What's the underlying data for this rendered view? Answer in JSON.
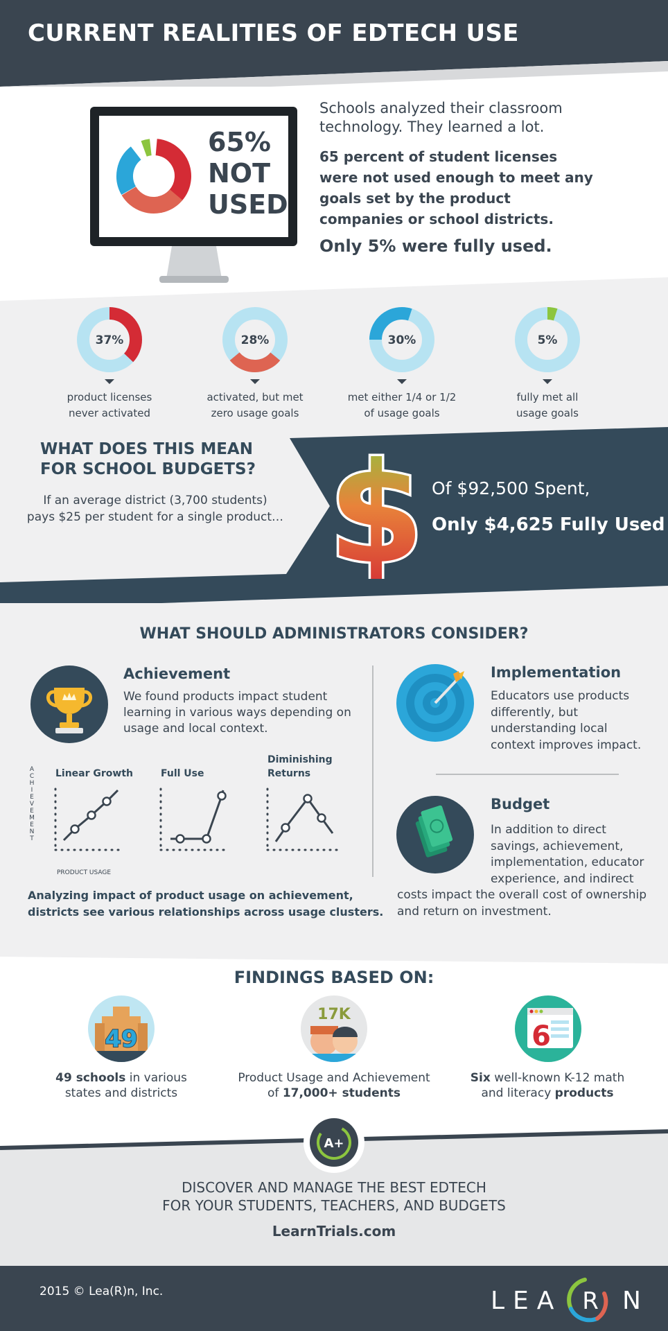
{
  "header": {
    "title": "CURRENT REALITIES OF EDTECH USE"
  },
  "monitor": {
    "line1": "65%",
    "line2": "NOT",
    "line3": "USED"
  },
  "intro": {
    "lead": "Schools analyzed their classroom technology. They learned a lot.",
    "bold": "65 percent of student licenses were not used enough to meet any goals set by the product companies or school districts.",
    "highlight": "Only 5% were fully used."
  },
  "stats": [
    {
      "value": 37,
      "label": "37%",
      "line1": "product licenses",
      "line2": "never activated",
      "color": "#d42b35"
    },
    {
      "value": 28,
      "label": "28%",
      "line1": "activated, but met",
      "line2": "zero usage goals",
      "color": "#de6452"
    },
    {
      "value": 30,
      "label": "30%",
      "line1": "met either 1/4 or 1/2",
      "line2": "of usage goals",
      "color": "#2ba6d9"
    },
    {
      "value": 5,
      "label": "5%",
      "line1": "fully met all",
      "line2": "usage goals",
      "color": "#8cc53f"
    }
  ],
  "budget": {
    "heading1": "WHAT DOES THIS MEAN",
    "heading2": "FOR SCHOOL BUDGETS?",
    "sub1": "If an average district (3,700 students)",
    "sub2": "pays $25 per student for a single product…",
    "spent": "Of $92,500 Spent,",
    "used": "Only $4,625 Fully Used"
  },
  "consider": {
    "heading": "WHAT SHOULD ADMINISTRATORS CONSIDER?",
    "achievement": {
      "title": "Achievement",
      "body": "We found products impact student learning in various ways depending on usage and local context."
    },
    "graphs": {
      "ylabel": [
        "A",
        "C",
        "H",
        "I",
        "E",
        "V",
        "E",
        "M",
        "E",
        "N",
        "T"
      ],
      "xlabel": "PRODUCT USAGE",
      "titles": [
        "Linear Growth",
        "Full Use",
        "Diminishing",
        "Returns"
      ]
    },
    "analysis1": "Analyzing impact of product usage on achievement,",
    "analysis2": "districts see various relationships across usage clusters.",
    "implementation": {
      "title": "Implementation",
      "lines": [
        "Educators use products",
        "differently, but",
        "understanding local",
        "context improves impact."
      ]
    },
    "budget": {
      "title": "Budget",
      "lines": [
        "In addition to direct",
        "savings, achievement,",
        "implementation, educator",
        "experience, and indirect"
      ],
      "wide": [
        "costs impact the overall cost of ownership",
        "and return on investment."
      ]
    }
  },
  "findings": {
    "heading": "FINDINGS BASED ON:",
    "schools_num": "49",
    "students_num": "17K",
    "products_num": "6",
    "items": [
      {
        "bold": "49 schools",
        "rest1": " in various",
        "line2": "states and districts"
      },
      {
        "line1": "Product Usage and Achievement",
        "pre": "of ",
        "bold": "17,000+ students"
      },
      {
        "bold": "Six",
        "rest1": " well-known K-12 math",
        "pre2": "and literacy ",
        "bold2": "products"
      }
    ]
  },
  "cta": {
    "badge": "A+",
    "line1": "DISCOVER AND MANAGE THE BEST EDTECH",
    "line2": "FOR YOUR STUDENTS, TEACHERS, AND BUDGETS",
    "url": "LearnTrials.com"
  },
  "footer": {
    "copyright": "2015 © Lea(R)n, Inc.",
    "logo_left": "LEA",
    "logo_mid": "R",
    "logo_right": "N"
  },
  "colors": {
    "dark": "#3a4550",
    "navy": "#344a5a",
    "red": "#d42b35",
    "salmon": "#de6452",
    "blue": "#2ba6d9",
    "green": "#8cc53f",
    "light_blue": "#b7e3f2"
  }
}
